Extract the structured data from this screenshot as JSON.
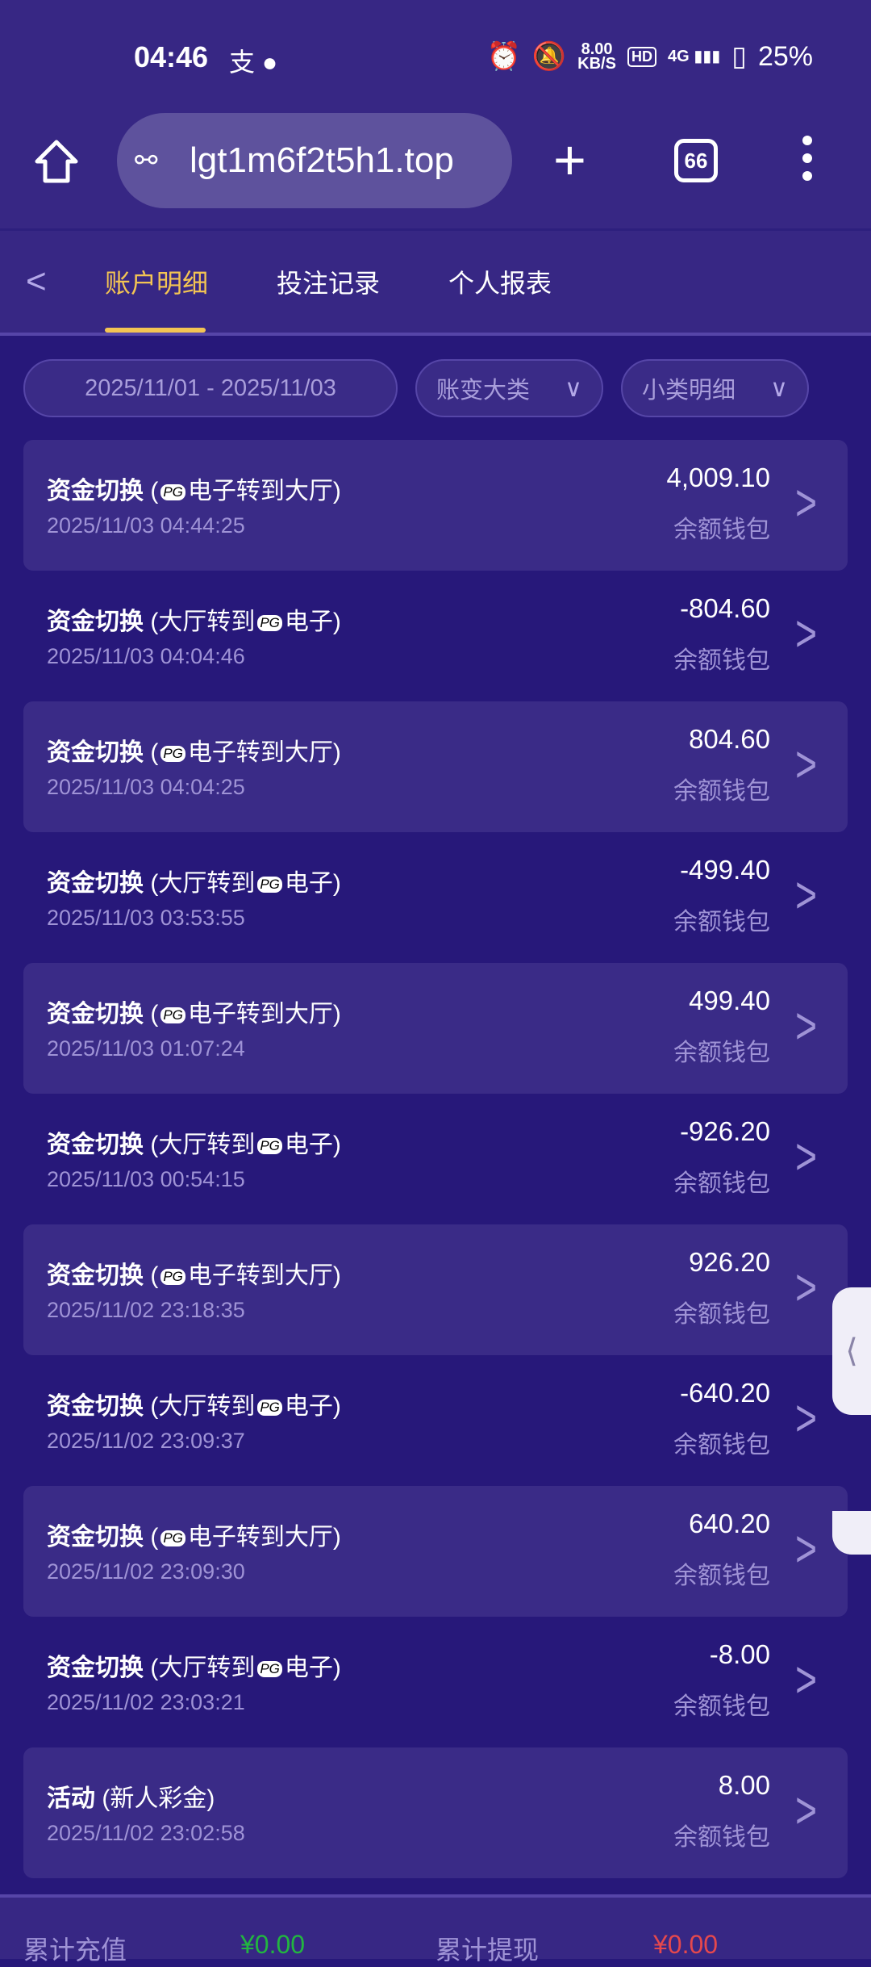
{
  "status_bar": {
    "time": "04:46",
    "notif_icons": [
      "alipay-icon",
      "wechat-icon"
    ],
    "speed": "8.00",
    "speed_unit": "KB/S",
    "hd": "HD",
    "network": "4G",
    "battery": "25%"
  },
  "browser": {
    "url": "lgt1m6f2t5h1.top",
    "tab_count": "66"
  },
  "nav": {
    "tabs": [
      {
        "label": "账户明细",
        "active": true
      },
      {
        "label": "投注记录"
      },
      {
        "label": "个人报表"
      }
    ]
  },
  "filters": {
    "date_range": "2025/11/01 - 2025/11/03",
    "category": "账变大类",
    "subcategory": "小类明细"
  },
  "pg_badge": "PG",
  "records": [
    {
      "title": "资金切换",
      "pre": "(",
      "post": "电子转到大厅)",
      "pg_first": true,
      "date": "2025/11/03 04:44:25",
      "amount": "4,009.10",
      "wallet": "余额钱包"
    },
    {
      "title": "资金切换",
      "pre": "(大厅转到",
      "post": "电子)",
      "date": "2025/11/03 04:04:46",
      "amount": "-804.60",
      "wallet": "余额钱包"
    },
    {
      "title": "资金切换",
      "pre": "(",
      "post": "电子转到大厅)",
      "date": "2025/11/03 04:04:25",
      "amount": "804.60",
      "wallet": "余额钱包"
    },
    {
      "title": "资金切换",
      "pre": "(大厅转到",
      "post": "电子)",
      "date": "2025/11/03 03:53:55",
      "amount": "-499.40",
      "wallet": "余额钱包"
    },
    {
      "title": "资金切换",
      "pre": "(",
      "post": "电子转到大厅)",
      "date": "2025/11/03 01:07:24",
      "amount": "499.40",
      "wallet": "余额钱包"
    },
    {
      "title": "资金切换",
      "pre": "(大厅转到",
      "post": "电子)",
      "date": "2025/11/03 00:54:15",
      "amount": "-926.20",
      "wallet": "余额钱包"
    },
    {
      "title": "资金切换",
      "pre": "(",
      "post": "电子转到大厅)",
      "date": "2025/11/02 23:18:35",
      "amount": "926.20",
      "wallet": "余额钱包"
    },
    {
      "title": "资金切换",
      "pre": "(大厅转到",
      "post": "电子)",
      "date": "2025/11/02 23:09:37",
      "amount": "-640.20",
      "wallet": "余额钱包"
    },
    {
      "title": "资金切换",
      "pre": "(",
      "post": "电子转到大厅)",
      "date": "2025/11/02 23:09:30",
      "amount": "640.20",
      "wallet": "余额钱包"
    },
    {
      "title": "资金切换",
      "pre": "(大厅转到",
      "post": "电子)",
      "date": "2025/11/02 23:03:21",
      "amount": "-8.00",
      "wallet": "余额钱包"
    },
    {
      "title": "活动",
      "pre": "(新人彩金)",
      "post": "",
      "nopg": true,
      "date": "2025/11/02 23:02:58",
      "amount": "8.00",
      "wallet": "余额钱包"
    }
  ],
  "footer": {
    "deposit_label": "累计充值",
    "deposit_value": "¥0.00",
    "withdraw_label": "累计提现",
    "withdraw_value": "¥0.00",
    "deposit_color": "#22b540",
    "withdraw_color": "#e5484d"
  },
  "colors": {
    "accent": "#f3c453",
    "background": "#27187a",
    "card": "#3a2b87"
  }
}
